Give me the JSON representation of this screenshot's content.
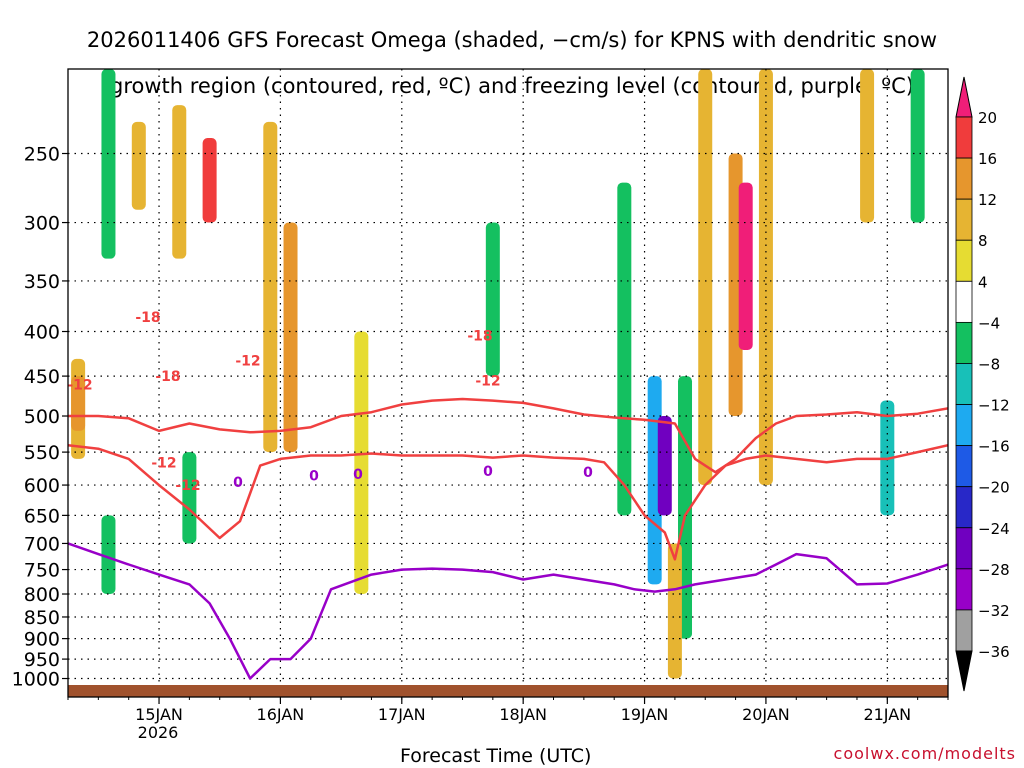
{
  "title_lines": [
    "2026011406 GFS Forecast Omega (shaded, −cm/s) for KPNS with dendritic snow",
    "growth region (contoured, red, ºC) and freezing level (contoured, purple, ºC)"
  ],
  "credit": "coolwx.com/modelts",
  "chart_data": {
    "type": "heatmap",
    "xlabel": "Forecast Time (UTC)",
    "ylabel": "",
    "y_axis": {
      "scale": "log-pressure (reversed)",
      "unit": "hPa",
      "ticks": [
        250,
        300,
        350,
        400,
        450,
        500,
        550,
        600,
        650,
        700,
        750,
        800,
        850,
        900,
        950,
        1000
      ],
      "range": [
        1050,
        200
      ]
    },
    "x_axis": {
      "range_hours_from_init": [
        0,
        174
      ],
      "tick_labels": [
        "15JAN",
        "16JAN",
        "17JAN",
        "18JAN",
        "19JAN",
        "20JAN",
        "21JAN"
      ],
      "year_label": "2026"
    },
    "grid": true,
    "colorbar": {
      "levels": [
        -36,
        -32,
        -28,
        -24,
        -20,
        -16,
        -12,
        -8,
        -4,
        4,
        8,
        12,
        16,
        20
      ],
      "tick_labels": [
        "20",
        "16",
        "12",
        "8",
        "4",
        "−4",
        "−8",
        "−12",
        "−16",
        "−20",
        "−24",
        "−28",
        "−32",
        "−36"
      ],
      "colors": [
        "#f0f0f0",
        "#000000",
        "#a0a0a0",
        "#9800c8",
        "#7000c0",
        "#2828c8",
        "#1e5ae6",
        "#1eaaf0",
        "#18c0b8",
        "#14c060",
        "#00c814",
        "#ffffff",
        "#e6dc32",
        "#e6b432",
        "#e6962d",
        "#e6782d",
        "#f03c3c",
        "#f01e78"
      ],
      "bins": [
        {
          "range": [
            null,
            -36
          ],
          "color": "#000000"
        },
        {
          "range": [
            -36,
            -32
          ],
          "color": "#a0a0a0"
        },
        {
          "range": [
            -32,
            -28
          ],
          "color": "#9800c8"
        },
        {
          "range": [
            -28,
            -24
          ],
          "color": "#7000c0"
        },
        {
          "range": [
            -24,
            -20
          ],
          "color": "#2828c8"
        },
        {
          "range": [
            -20,
            -16
          ],
          "color": "#1e5ae6"
        },
        {
          "range": [
            -16,
            -12
          ],
          "color": "#1eaaf0"
        },
        {
          "range": [
            -12,
            -8
          ],
          "color": "#18c0b8"
        },
        {
          "range": [
            -8,
            -4
          ],
          "color": "#14c060"
        },
        {
          "range": [
            -4,
            4
          ],
          "color": "#ffffff"
        },
        {
          "range": [
            4,
            8
          ],
          "color": "#e6dc32"
        },
        {
          "range": [
            8,
            12
          ],
          "color": "#e6b432"
        },
        {
          "range": [
            12,
            16
          ],
          "color": "#e6962d"
        },
        {
          "range": [
            16,
            20
          ],
          "color": "#f03c3c"
        },
        {
          "range": [
            20,
            null
          ],
          "color": "#f01e78"
        }
      ]
    },
    "contour_colors": {
      "dgz": "#f04040",
      "freezing": "#9800c8",
      "ground": "#a0522d"
    },
    "contours": {
      "minus18": {
        "label": "-18",
        "label_at": [
          [
            80,
            385
          ],
          [
            100,
            450
          ],
          [
            412,
            404
          ]
        ],
        "points": [
          [
            0,
            500
          ],
          [
            6,
            500
          ],
          [
            12,
            503
          ],
          [
            18,
            520
          ],
          [
            24,
            510
          ],
          [
            30,
            518
          ],
          [
            36,
            522
          ],
          [
            42,
            520
          ],
          [
            48,
            515
          ],
          [
            54,
            500
          ],
          [
            60,
            495
          ],
          [
            66,
            485
          ],
          [
            72,
            480
          ],
          [
            78,
            478
          ],
          [
            84,
            480
          ],
          [
            90,
            483
          ],
          [
            96,
            490
          ],
          [
            102,
            498
          ],
          [
            108,
            502
          ],
          [
            114,
            505
          ],
          [
            120,
            510
          ],
          [
            124,
            560
          ],
          [
            128,
            580
          ],
          [
            132,
            560
          ],
          [
            136,
            530
          ],
          [
            140,
            510
          ],
          [
            144,
            500
          ],
          [
            150,
            498
          ],
          [
            156,
            495
          ],
          [
            162,
            500
          ],
          [
            168,
            497
          ],
          [
            174,
            490
          ]
        ]
      },
      "minus12": {
        "label": "-12",
        "label_at": [
          [
            12,
            460
          ],
          [
            96,
            565
          ],
          [
            120,
            600
          ],
          [
            180,
            432
          ],
          [
            420,
            455
          ]
        ],
        "points": [
          [
            0,
            540
          ],
          [
            6,
            545
          ],
          [
            12,
            560
          ],
          [
            18,
            600
          ],
          [
            24,
            640
          ],
          [
            30,
            690
          ],
          [
            34,
            660
          ],
          [
            38,
            570
          ],
          [
            42,
            560
          ],
          [
            48,
            555
          ],
          [
            54,
            555
          ],
          [
            60,
            552
          ],
          [
            66,
            555
          ],
          [
            72,
            555
          ],
          [
            78,
            555
          ],
          [
            84,
            558
          ],
          [
            90,
            555
          ],
          [
            96,
            558
          ],
          [
            102,
            560
          ],
          [
            106,
            565
          ],
          [
            110,
            600
          ],
          [
            114,
            650
          ],
          [
            118,
            680
          ],
          [
            120,
            730
          ],
          [
            122,
            650
          ],
          [
            126,
            600
          ],
          [
            130,
            570
          ],
          [
            134,
            560
          ],
          [
            138,
            555
          ],
          [
            144,
            560
          ],
          [
            150,
            565
          ],
          [
            156,
            560
          ],
          [
            162,
            560
          ],
          [
            168,
            550
          ],
          [
            174,
            540
          ]
        ]
      },
      "freezing": {
        "label": "0",
        "label_at": [
          [
            170,
            595
          ],
          [
            246,
            585
          ],
          [
            290,
            583
          ],
          [
            420,
            578
          ],
          [
            520,
            580
          ]
        ],
        "points": [
          [
            0,
            700
          ],
          [
            6,
            720
          ],
          [
            12,
            740
          ],
          [
            18,
            760
          ],
          [
            24,
            780
          ],
          [
            28,
            820
          ],
          [
            32,
            900
          ],
          [
            36,
            1000
          ],
          [
            40,
            950
          ],
          [
            44,
            950
          ],
          [
            48,
            900
          ],
          [
            52,
            790
          ],
          [
            60,
            760
          ],
          [
            66,
            750
          ],
          [
            72,
            748
          ],
          [
            78,
            750
          ],
          [
            84,
            755
          ],
          [
            90,
            770
          ],
          [
            96,
            760
          ],
          [
            102,
            770
          ],
          [
            108,
            780
          ],
          [
            112,
            790
          ],
          [
            116,
            795
          ],
          [
            120,
            790
          ],
          [
            124,
            780
          ],
          [
            130,
            770
          ],
          [
            136,
            760
          ],
          [
            140,
            740
          ],
          [
            144,
            720
          ],
          [
            150,
            728
          ],
          [
            156,
            780
          ],
          [
            162,
            778
          ],
          [
            168,
            760
          ],
          [
            174,
            740
          ]
        ]
      }
    },
    "shaded_cells": [
      {
        "time_h": 2,
        "p_top": 430,
        "p_bot": 560,
        "value": 8
      },
      {
        "time_h": 2,
        "p_top": 450,
        "p_bot": 520,
        "value": 14
      },
      {
        "time_h": 8,
        "p_top": 200,
        "p_bot": 330,
        "value": -8
      },
      {
        "time_h": 8,
        "p_top": 650,
        "p_bot": 800,
        "value": -8
      },
      {
        "time_h": 14,
        "p_top": 230,
        "p_bot": 290,
        "value": 8
      },
      {
        "time_h": 22,
        "p_top": 220,
        "p_bot": 330,
        "value": 10
      },
      {
        "time_h": 24,
        "p_top": 550,
        "p_bot": 700,
        "value": -8
      },
      {
        "time_h": 28,
        "p_top": 240,
        "p_bot": 300,
        "value": 16
      },
      {
        "time_h": 40,
        "p_top": 230,
        "p_bot": 550,
        "value": 8
      },
      {
        "time_h": 44,
        "p_top": 300,
        "p_bot": 550,
        "value": 12
      },
      {
        "time_h": 58,
        "p_top": 400,
        "p_bot": 800,
        "value": 6
      },
      {
        "time_h": 84,
        "p_top": 300,
        "p_bot": 450,
        "value": -6
      },
      {
        "time_h": 110,
        "p_top": 270,
        "p_bot": 650,
        "value": -8
      },
      {
        "time_h": 116,
        "p_top": 450,
        "p_bot": 780,
        "value": -16
      },
      {
        "time_h": 118,
        "p_top": 500,
        "p_bot": 650,
        "value": -28
      },
      {
        "time_h": 122,
        "p_top": 450,
        "p_bot": 900,
        "value": -8
      },
      {
        "time_h": 120,
        "p_top": 700,
        "p_bot": 1000,
        "value": 8
      },
      {
        "time_h": 126,
        "p_top": 200,
        "p_bot": 600,
        "value": 10
      },
      {
        "time_h": 132,
        "p_top": 250,
        "p_bot": 500,
        "value": 14
      },
      {
        "time_h": 134,
        "p_top": 270,
        "p_bot": 420,
        "value": 22
      },
      {
        "time_h": 138,
        "p_top": 200,
        "p_bot": 600,
        "value": 8
      },
      {
        "time_h": 158,
        "p_top": 200,
        "p_bot": 300,
        "value": 10
      },
      {
        "time_h": 162,
        "p_top": 480,
        "p_bot": 650,
        "value": -12
      },
      {
        "time_h": 168,
        "p_top": 200,
        "p_bot": 300,
        "value": -8
      }
    ]
  }
}
